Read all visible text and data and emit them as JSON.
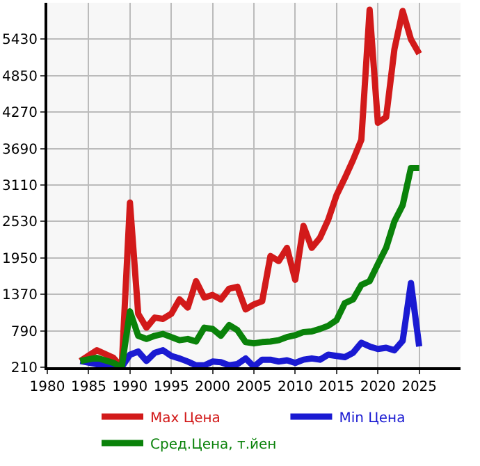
{
  "chart_data": {
    "type": "line",
    "x": [
      1984,
      1986,
      1988,
      1989,
      1990,
      1991,
      1992,
      1993,
      1994,
      1995,
      1996,
      1997,
      1998,
      1999,
      2000,
      2001,
      2002,
      2003,
      2004,
      2005,
      2006,
      2007,
      2008,
      2009,
      2010,
      2011,
      2012,
      2013,
      2014,
      2015,
      2016,
      2017,
      2018,
      2019,
      2020,
      2021,
      2022,
      2023,
      2024,
      2025
    ],
    "series": [
      {
        "name": "Max Цена",
        "color": "#d21a1a",
        "values": [
          310,
          480,
          360,
          210,
          2830,
          1060,
          840,
          1000,
          980,
          1060,
          1290,
          1160,
          1580,
          1320,
          1360,
          1290,
          1460,
          1490,
          1130,
          1210,
          1260,
          1980,
          1900,
          2110,
          1600,
          2460,
          2110,
          2270,
          2560,
          2950,
          3220,
          3510,
          3830,
          5900,
          4100,
          4190,
          5270,
          5880,
          5430,
          5200
        ]
      },
      {
        "name": "Min Цена",
        "color": "#1a1ad2",
        "values": [
          310,
          260,
          210,
          210,
          410,
          460,
          310,
          440,
          480,
          390,
          350,
          300,
          240,
          240,
          300,
          290,
          240,
          260,
          350,
          220,
          330,
          330,
          300,
          320,
          280,
          330,
          350,
          330,
          410,
          390,
          370,
          440,
          600,
          540,
          500,
          520,
          480,
          630,
          1550,
          540
        ]
      },
      {
        "name": "Сред.Цена, т.йен",
        "color": "#0a820a",
        "values": [
          310,
          360,
          280,
          210,
          1100,
          710,
          660,
          710,
          740,
          690,
          640,
          660,
          620,
          840,
          820,
          710,
          880,
          800,
          610,
          590,
          610,
          620,
          640,
          690,
          720,
          770,
          780,
          820,
          870,
          960,
          1230,
          1290,
          1520,
          1580,
          1850,
          2110,
          2530,
          2790,
          3380,
          3380
        ]
      }
    ],
    "xlim": [
      1980,
      2030
    ],
    "xticks": [
      1980,
      1985,
      1990,
      1995,
      2000,
      2005,
      2010,
      2015,
      2020,
      2025
    ],
    "ylim": [
      210,
      6010
    ],
    "yticks": [
      210,
      790,
      1370,
      1950,
      2530,
      3110,
      3690,
      4270,
      4850,
      5430
    ],
    "grid": true,
    "legend": "bottom",
    "marker": "none",
    "line_style": "solid"
  }
}
